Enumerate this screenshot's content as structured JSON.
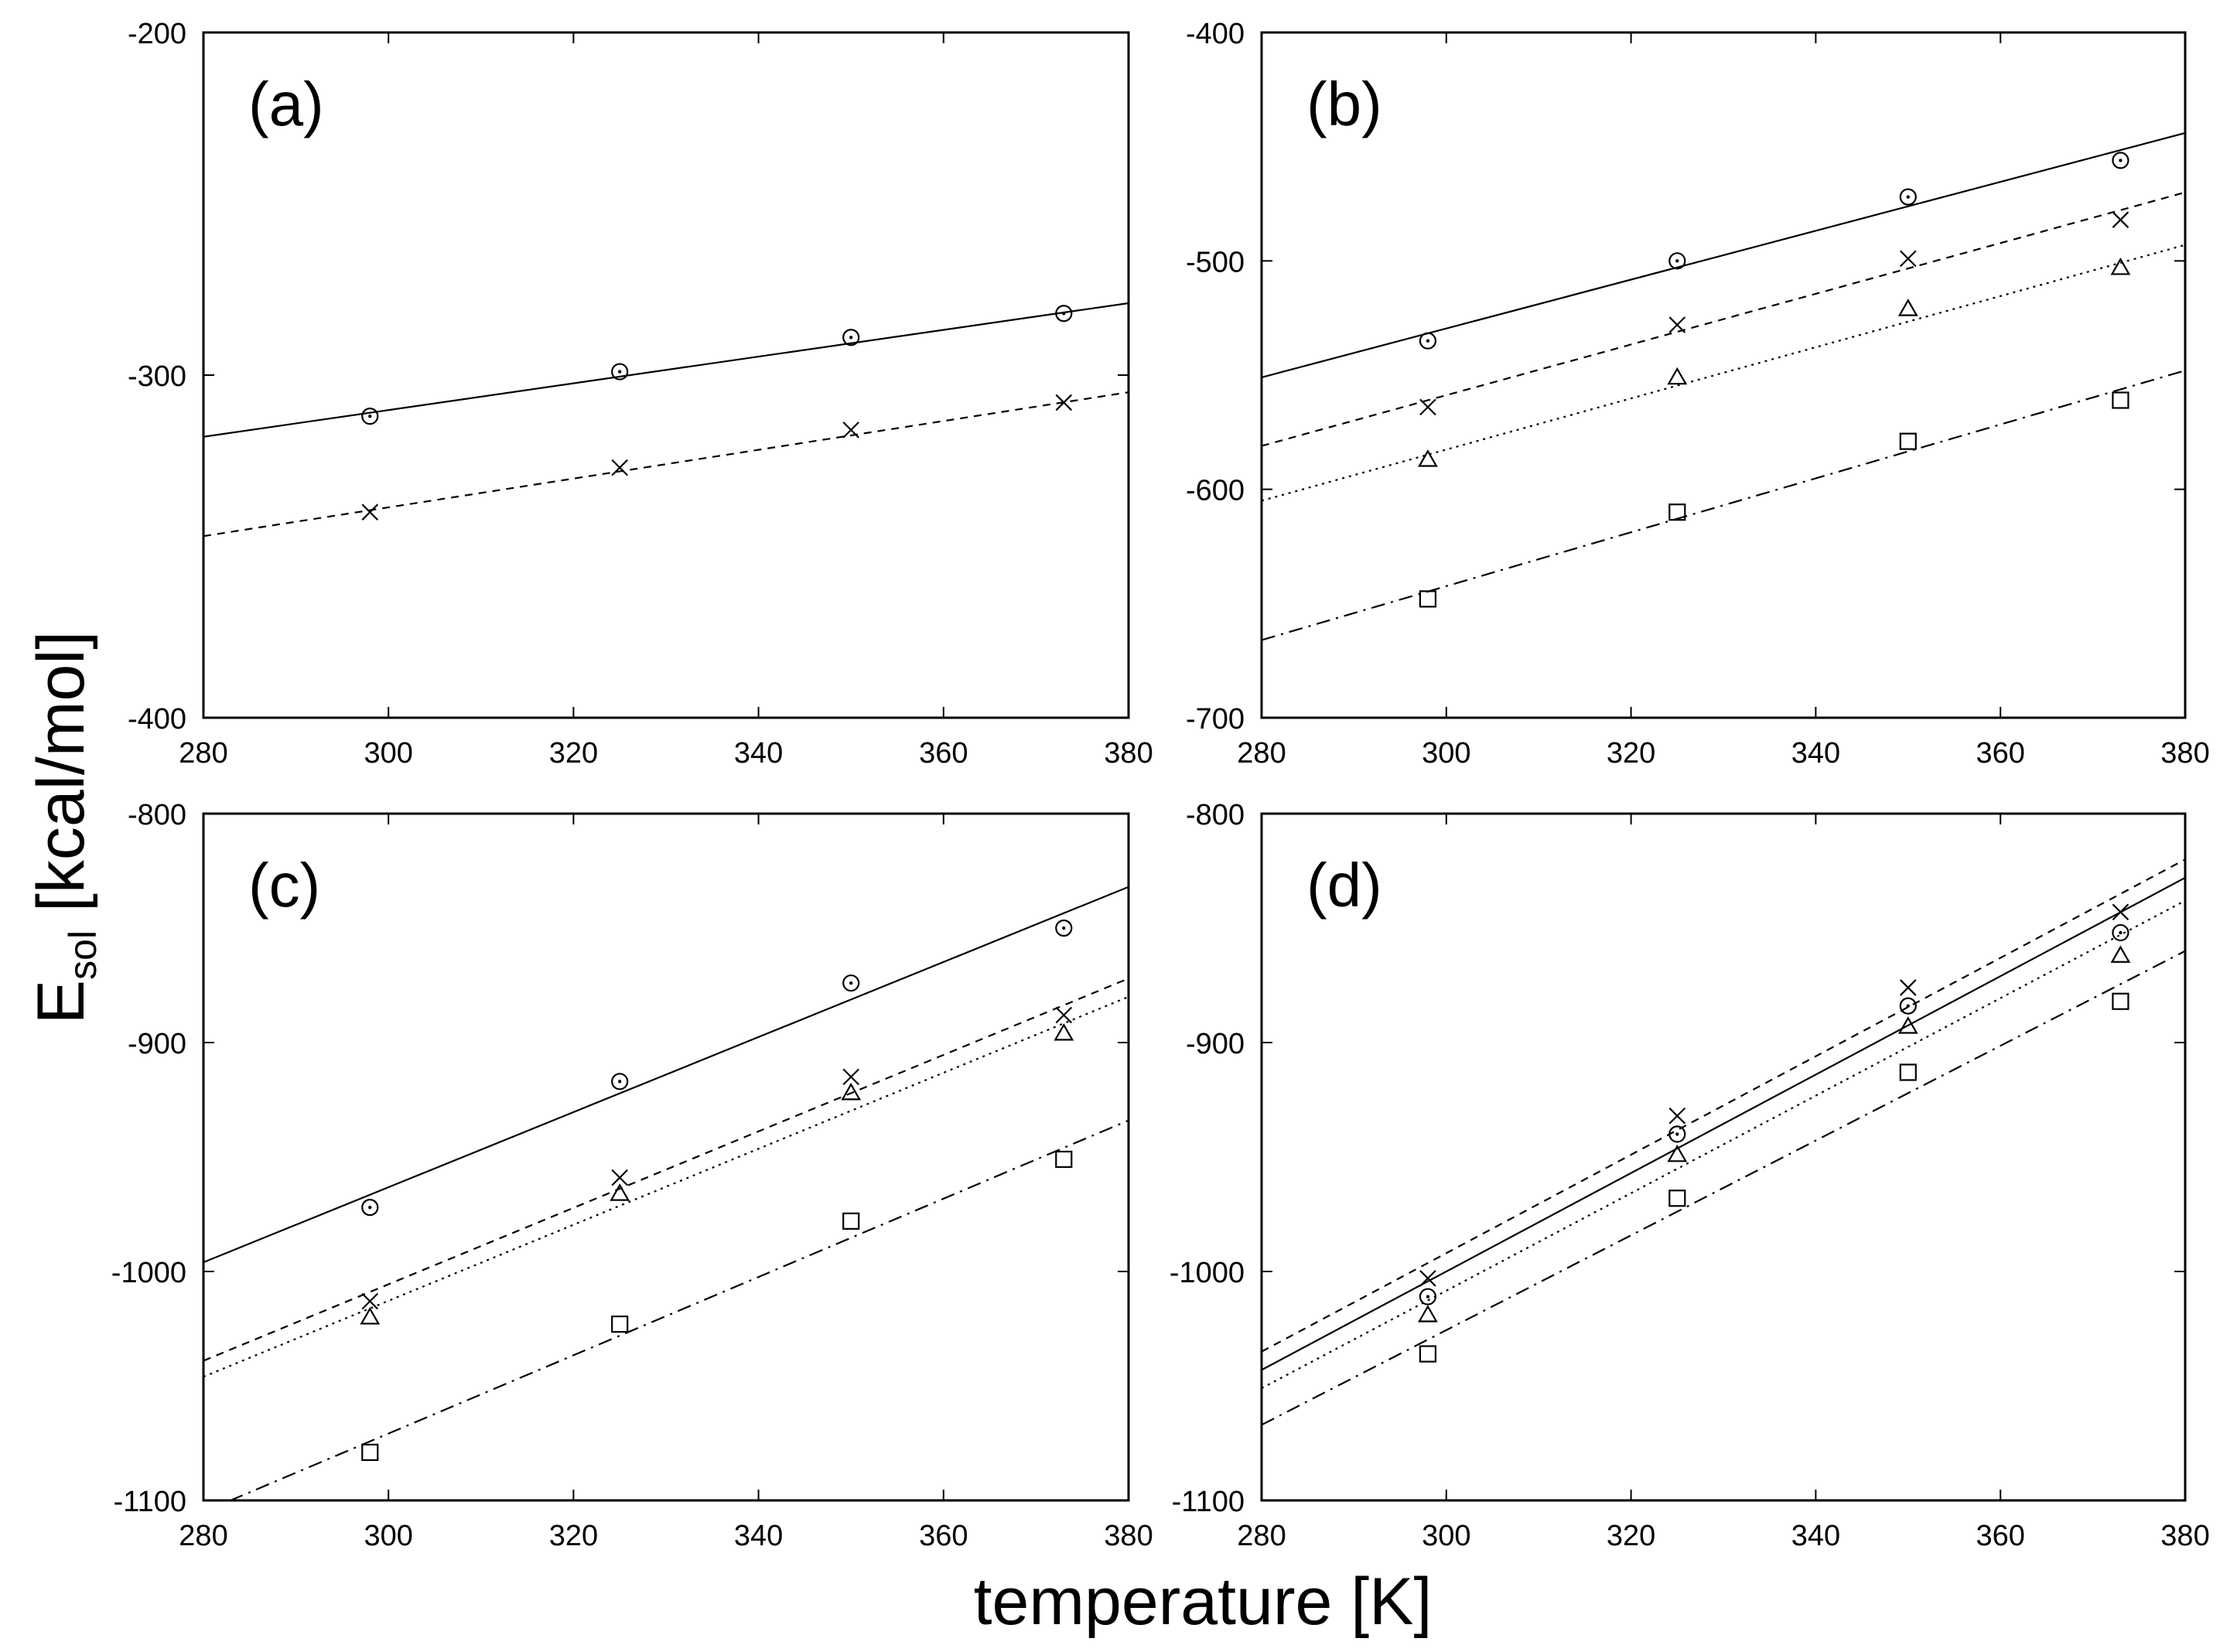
{
  "figure": {
    "xlabel": "temperature [K]",
    "ylabel_main": "E",
    "ylabel_sub": "sol",
    "ylabel_rest": " [kcal/mol]"
  },
  "chart_data": [
    {
      "type": "scatter",
      "panel_label": "(a)",
      "xlim": [
        280,
        380
      ],
      "ylim": [
        -400,
        -200
      ],
      "xticks": [
        280,
        300,
        320,
        340,
        360,
        380
      ],
      "yticks": [
        -400,
        -300,
        -200
      ],
      "series": [
        {
          "marker": "circle",
          "line_style": "solid",
          "x": [
            298,
            325,
            350,
            373
          ],
          "y": [
            -312,
            -299,
            -289,
            -282
          ],
          "fit": [
            [
              280,
              -318
            ],
            [
              380,
              -279
            ]
          ]
        },
        {
          "marker": "cross",
          "line_style": "dashed",
          "x": [
            298,
            325,
            350,
            373
          ],
          "y": [
            -340,
            -327,
            -316,
            -308
          ],
          "fit": [
            [
              280,
              -347
            ],
            [
              380,
              -305
            ]
          ]
        }
      ]
    },
    {
      "type": "scatter",
      "panel_label": "(b)",
      "xlim": [
        280,
        380
      ],
      "ylim": [
        -700,
        -400
      ],
      "xticks": [
        280,
        300,
        320,
        340,
        360,
        380
      ],
      "yticks": [
        -700,
        -600,
        -500,
        -400
      ],
      "series": [
        {
          "marker": "circle",
          "line_style": "solid",
          "x": [
            298,
            325,
            350,
            373
          ],
          "y": [
            -535,
            -500,
            -472,
            -456
          ],
          "fit": [
            [
              280,
              -551
            ],
            [
              380,
              -444
            ]
          ]
        },
        {
          "marker": "cross",
          "line_style": "dashed",
          "x": [
            298,
            325,
            350,
            373
          ],
          "y": [
            -564,
            -528,
            -499,
            -482
          ],
          "fit": [
            [
              280,
              -581
            ],
            [
              380,
              -470
            ]
          ]
        },
        {
          "marker": "triangle",
          "line_style": "dotted",
          "x": [
            298,
            325,
            350,
            373
          ],
          "y": [
            -587,
            -551,
            -521,
            -503
          ],
          "fit": [
            [
              280,
              -605
            ],
            [
              380,
              -493
            ]
          ]
        },
        {
          "marker": "square",
          "line_style": "dashdot",
          "x": [
            298,
            325,
            350,
            373
          ],
          "y": [
            -648,
            -610,
            -579,
            -561
          ],
          "fit": [
            [
              280,
              -666
            ],
            [
              380,
              -548
            ]
          ]
        }
      ]
    },
    {
      "type": "scatter",
      "panel_label": "(c)",
      "xlim": [
        280,
        380
      ],
      "ylim": [
        -1100,
        -800
      ],
      "xticks": [
        280,
        300,
        320,
        340,
        360,
        380
      ],
      "yticks": [
        -1100,
        -1000,
        -900,
        -800
      ],
      "series": [
        {
          "marker": "circle",
          "line_style": "solid",
          "x": [
            298,
            325,
            350,
            373
          ],
          "y": [
            -972,
            -917,
            -874,
            -850
          ],
          "fit": [
            [
              280,
              -996
            ],
            [
              380,
              -832
            ]
          ]
        },
        {
          "marker": "cross",
          "line_style": "dashed",
          "x": [
            298,
            325,
            350,
            373
          ],
          "y": [
            -1013,
            -959,
            -915,
            -888
          ],
          "fit": [
            [
              280,
              -1039
            ],
            [
              380,
              -872
            ]
          ]
        },
        {
          "marker": "triangle",
          "line_style": "dotted",
          "x": [
            298,
            325,
            350,
            373
          ],
          "y": [
            -1020,
            -966,
            -922,
            -896
          ],
          "fit": [
            [
              280,
              -1046
            ],
            [
              380,
              -880
            ]
          ]
        },
        {
          "marker": "square",
          "line_style": "dashdot",
          "x": [
            298,
            325,
            350,
            373
          ],
          "y": [
            -1079,
            -1023,
            -978,
            -951
          ],
          "fit": [
            [
              280,
              -1105
            ],
            [
              380,
              -934
            ]
          ]
        }
      ]
    },
    {
      "type": "scatter",
      "panel_label": "(d)",
      "xlim": [
        280,
        380
      ],
      "ylim": [
        -1100,
        -800
      ],
      "xticks": [
        280,
        300,
        320,
        340,
        360,
        380
      ],
      "yticks": [
        -1100,
        -1000,
        -900,
        -800
      ],
      "series": [
        {
          "marker": "circle",
          "line_style": "solid",
          "x": [
            298,
            325,
            350,
            373
          ],
          "y": [
            -1011,
            -940,
            -884,
            -852
          ],
          "fit": [
            [
              280,
              -1043
            ],
            [
              380,
              -828
            ]
          ]
        },
        {
          "marker": "cross",
          "line_style": "dashed",
          "x": [
            298,
            325,
            350,
            373
          ],
          "y": [
            -1003,
            -932,
            -876,
            -843
          ],
          "fit": [
            [
              280,
              -1035
            ],
            [
              380,
              -820
            ]
          ]
        },
        {
          "marker": "triangle",
          "line_style": "dotted",
          "x": [
            298,
            325,
            350,
            373
          ],
          "y": [
            -1019,
            -949,
            -893,
            -862
          ],
          "fit": [
            [
              280,
              -1051
            ],
            [
              380,
              -838
            ]
          ]
        },
        {
          "marker": "square",
          "line_style": "dashdot",
          "x": [
            298,
            325,
            350,
            373
          ],
          "y": [
            -1036,
            -968,
            -913,
            -882
          ],
          "fit": [
            [
              280,
              -1067
            ],
            [
              380,
              -860
            ]
          ]
        }
      ]
    }
  ]
}
